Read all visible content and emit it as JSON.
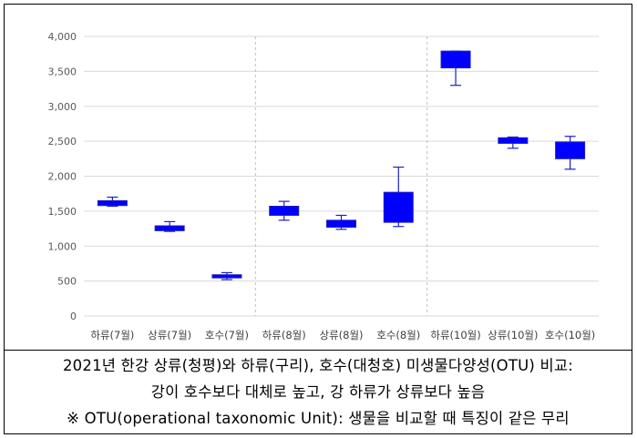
{
  "chart_data": {
    "type": "boxplot",
    "categories": [
      "하류(7월)",
      "상류(7월)",
      "호수(7월)",
      "하류(8월)",
      "상류(8월)",
      "호수(8월)",
      "하류(10월)",
      "상류(10월)",
      "호수(10월)"
    ],
    "boxes": [
      {
        "min": 1570,
        "q1": 1580,
        "q3": 1650,
        "max": 1700
      },
      {
        "min": 1210,
        "q1": 1220,
        "q3": 1290,
        "max": 1350
      },
      {
        "min": 520,
        "q1": 545,
        "q3": 590,
        "max": 620
      },
      {
        "min": 1370,
        "q1": 1440,
        "q3": 1570,
        "max": 1640
      },
      {
        "min": 1240,
        "q1": 1270,
        "q3": 1370,
        "max": 1440
      },
      {
        "min": 1280,
        "q1": 1340,
        "q3": 1770,
        "max": 2130
      },
      {
        "min": 3300,
        "q1": 3550,
        "q3": 3790,
        "max": 3790
      },
      {
        "min": 2400,
        "q1": 2470,
        "q3": 2550,
        "max": 2560
      },
      {
        "min": 2100,
        "q1": 2250,
        "q3": 2490,
        "max": 2570
      }
    ],
    "yticks": [
      "0",
      "500",
      "1,000",
      "1,500",
      "2,000",
      "2,500",
      "3,000",
      "3,500",
      "4,000"
    ],
    "ylim": [
      0,
      4000
    ],
    "group_separators_after": [
      3,
      6
    ],
    "grid": true,
    "box_color": "#0000ff",
    "box_edge_color": "#1f1fbf",
    "gridline_color": "#d9d9d9",
    "separator_color": "#bfbfbf"
  },
  "caption": {
    "line1": "2021년 한강 상류(청평)와 하류(구리), 호수(대청호) 미생물다양성(OTU) 비교:",
    "line2": "강이 호수보다 대체로 높고, 강 하류가 상류보다 높음",
    "line3": "※ OTU(operational taxonomic Unit): 생물을 비교할 때 특징이 같은 무리"
  }
}
